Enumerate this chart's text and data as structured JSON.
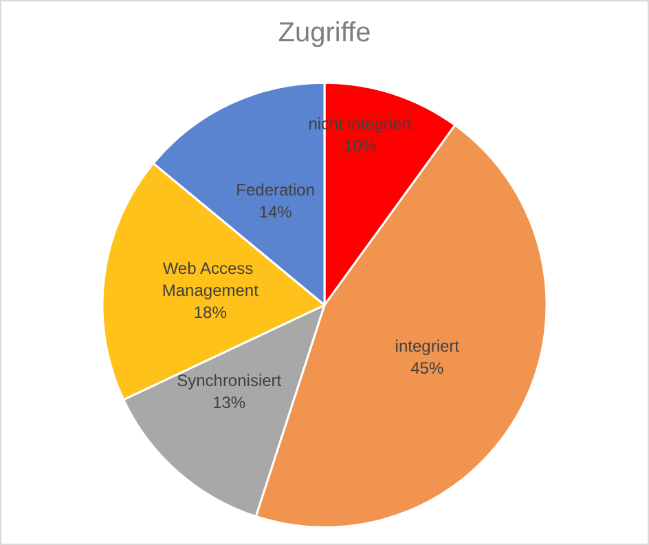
{
  "chart_data": {
    "type": "pie",
    "title": "Zugriffe",
    "categories": [
      "nicht integriert",
      "integriert",
      "Synchronisiert",
      "Web Access Management",
      "Federation"
    ],
    "values": [
      10,
      45,
      13,
      18,
      14
    ],
    "value_labels": [
      "10%",
      "45%",
      "13%",
      "18%",
      "14%"
    ],
    "colors": [
      "#ff0000",
      "#f0944f",
      "#a8a8a8",
      "#ffc21a",
      "#5b84d0"
    ],
    "legend": false
  }
}
